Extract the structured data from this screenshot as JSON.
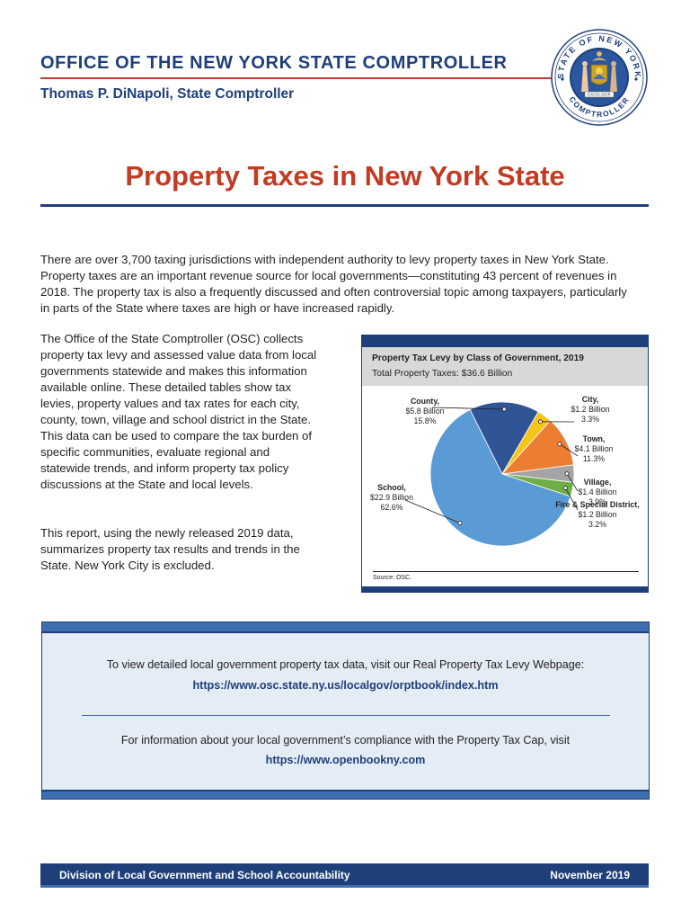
{
  "header": {
    "office": "OFFICE OF THE NEW YORK STATE COMPTROLLER",
    "comptroller": "Thomas P. DiNapoli, State Comptroller",
    "seal_text_top": "STATE OF NEW YORK",
    "seal_text_bottom": "COMPTROLLER",
    "seal_motto": "EXCELSIOR"
  },
  "title": "Property Taxes in New York State",
  "intro": "There are over 3,700 taxing jurisdictions with independent authority to levy property taxes in New York State. Property taxes are an important revenue source for local governments—constituting 43 percent of revenues in 2018. The property tax is also a frequently discussed and often controversial topic among taxpayers, particularly in parts of the State where taxes are high or have increased rapidly.",
  "body1": "The Office of the State Comptroller (OSC) collects property tax levy and assessed value data from local governments statewide and makes this information available online. These detailed tables show tax levies, property values and tax rates for each city, county, town, village and school district in the State. This data can be used to compare the tax burden of specific communities, evaluate regional and statewide trends, and inform property tax policy discussions at the State and local levels.",
  "body2": "This report, using the newly released 2019 data, summarizes property tax results and trends in the State. New York City is excluded.",
  "chart": {
    "title": "Property Tax Levy by Class of Government, 2019",
    "subtitle": "Total Property Taxes: $36.6 Billion",
    "source": "Source: OSC."
  },
  "chart_data": {
    "type": "pie",
    "title": "Property Tax Levy by Class of Government, 2019",
    "subtitle": "Total Property Taxes: $36.6 Billion",
    "categories": [
      "County",
      "City",
      "Town",
      "Village",
      "Fire & Special District",
      "School"
    ],
    "values": [
      15.8,
      3.3,
      11.3,
      3.9,
      3.2,
      62.6
    ],
    "amounts": [
      "$5.8 Billion",
      "$1.2 Billion",
      "$4.1 Billion",
      "$1.4 Billion",
      "$1.2 Billion",
      "$22.9 Billion"
    ],
    "percent_labels": [
      "15.8%",
      "3.3%",
      "11.3%",
      "3.9%",
      "3.2%",
      "62.6%"
    ],
    "colors": [
      "#2f5597",
      "#f5c518",
      "#ed7d31",
      "#a5a5a5",
      "#70ad47",
      "#5b9bd5"
    ],
    "source": "Source: OSC."
  },
  "info": {
    "line1": "To view detailed local government property tax data, visit our Real Property Tax Levy Webpage:",
    "link1": "https://www.osc.state.ny.us/localgov/orptbook/index.htm",
    "line2": "For information about your local government’s compliance with the Property Tax Cap, visit",
    "link2": "https://www.openbookny.com"
  },
  "footer": {
    "division": "Division of Local Government and School Accountability",
    "date": "November 2019"
  },
  "colors": {
    "navy": "#1f3f7a",
    "title_red": "#c23b22",
    "accent_blue": "#3e6fb3",
    "info_bg": "#e4ecf6"
  }
}
